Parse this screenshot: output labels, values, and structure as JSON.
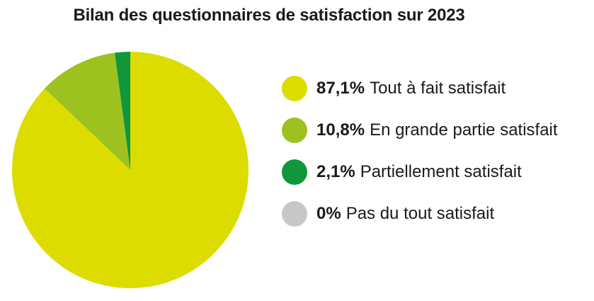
{
  "chart_data": {
    "type": "pie",
    "title": "Bilan des questionnaires de satisfaction sur 2023",
    "slices": [
      {
        "value_label": "87,1%",
        "label": "Tout à fait satisfait",
        "value": 87.1,
        "color": "#dcdc00"
      },
      {
        "value_label": "10,8%",
        "label": "En grande partie satisfait",
        "value": 10.8,
        "color": "#9dc21f"
      },
      {
        "value_label": "2,1%",
        "label": "Partiellement satisfait",
        "value": 2.1,
        "color": "#10973a"
      },
      {
        "value_label": "0%",
        "label": "Pas du tout satisfait",
        "value": 0,
        "color": "#c8c8c8"
      }
    ],
    "legend_position": "right"
  }
}
